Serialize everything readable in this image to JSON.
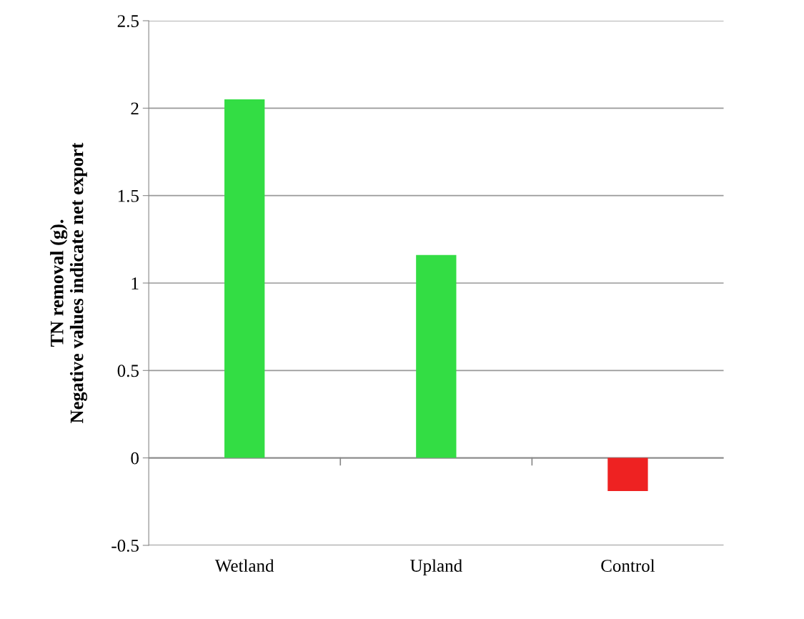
{
  "chart_data": {
    "type": "bar",
    "ylabel": "TN removal (g).\nNegative values indicate net export",
    "categories": [
      "Wetland",
      "Upland",
      "Control"
    ],
    "values": [
      2.05,
      1.16,
      -0.19
    ],
    "colors": [
      "#33dd44",
      "#33dd44",
      "#ee2222"
    ],
    "ylim": [
      -0.5,
      2.5
    ],
    "yticks": [
      {
        "value": -0.5,
        "label": "-0.5"
      },
      0,
      0.5,
      1,
      1.5,
      2,
      2.5
    ],
    "grid": "y"
  }
}
